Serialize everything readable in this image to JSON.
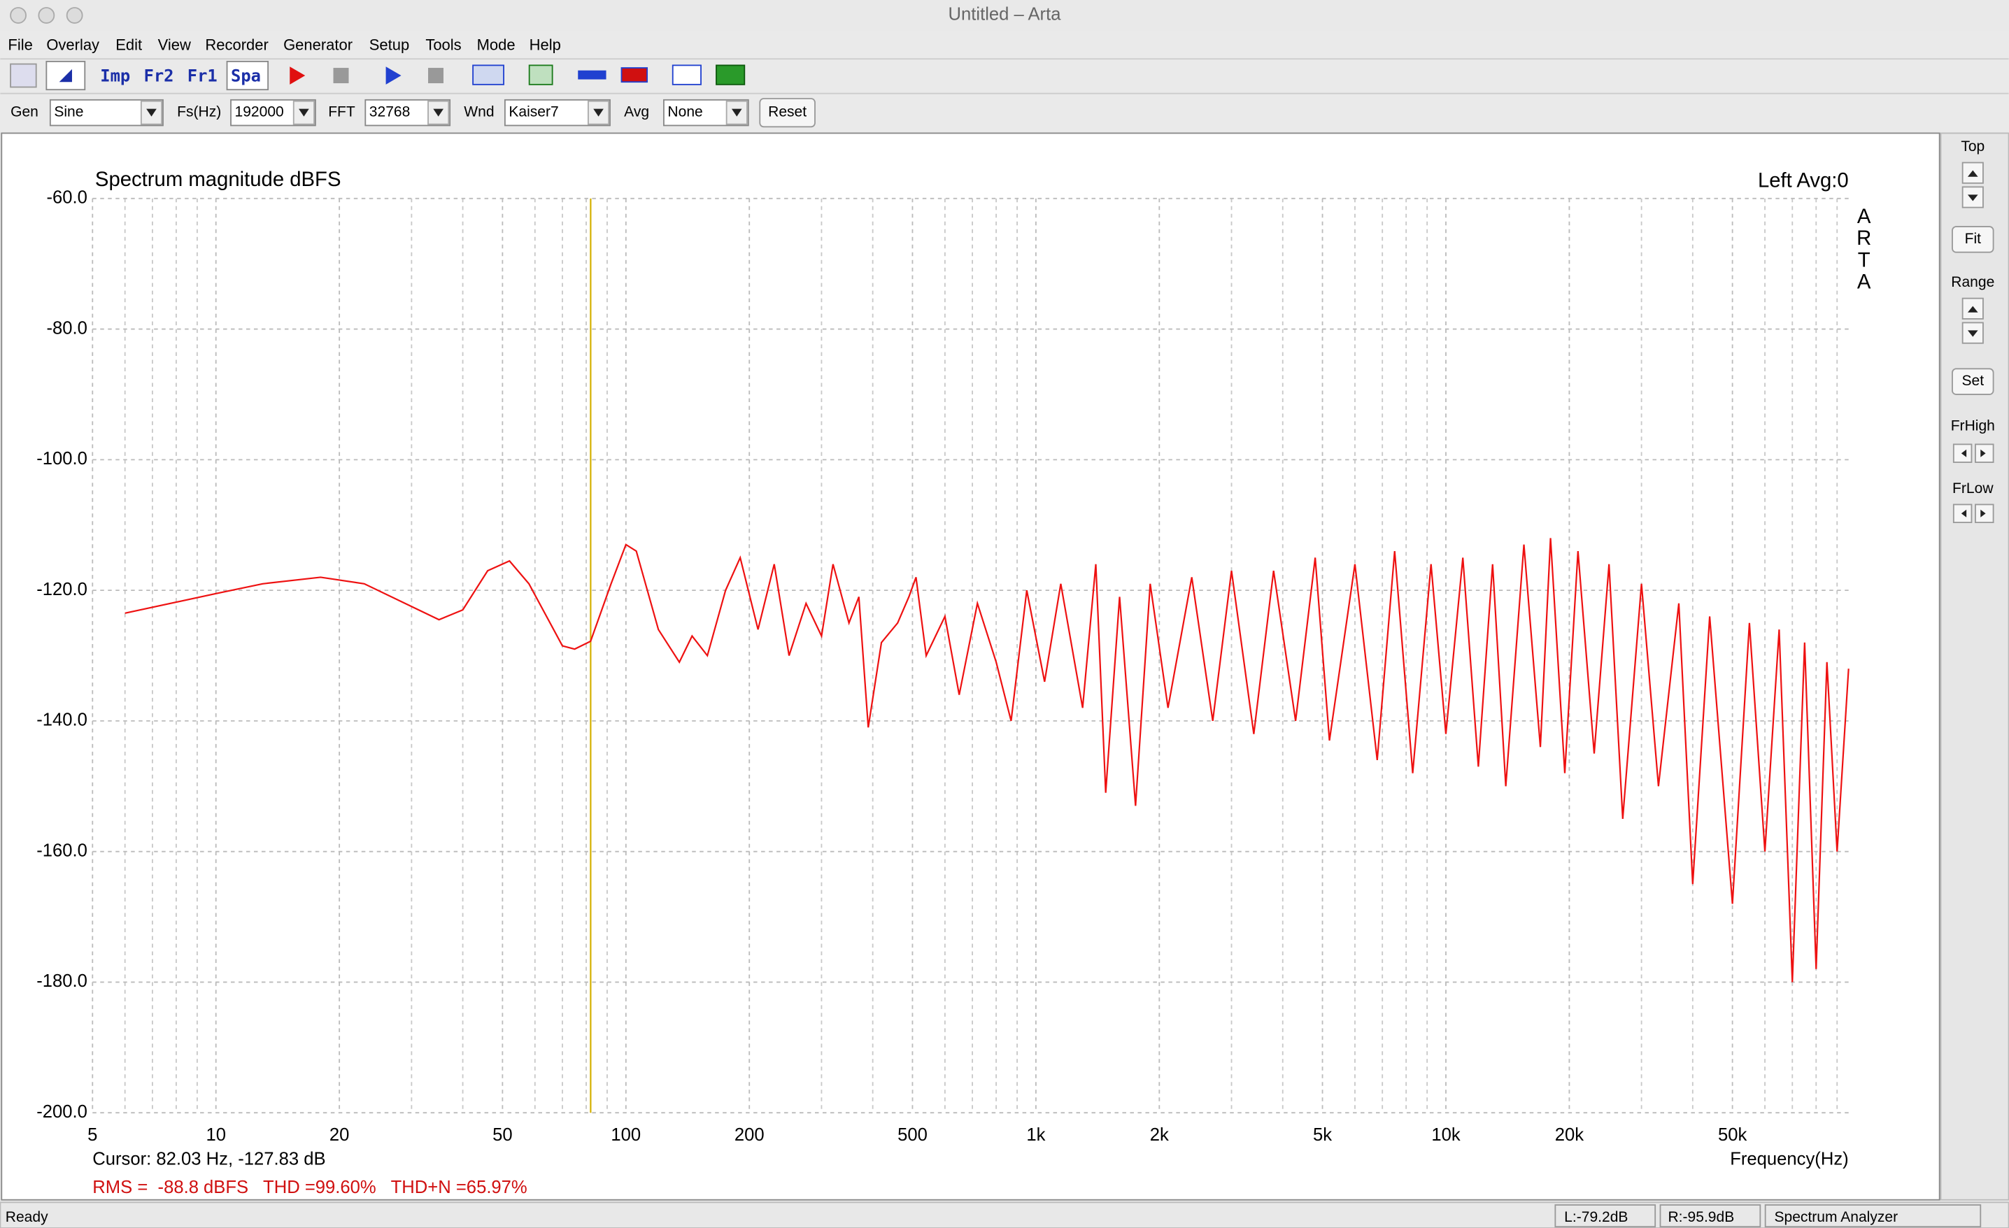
{
  "window": {
    "title": "Untitled – Arta"
  },
  "menu": [
    "File",
    "Overlay",
    "Edit",
    "View",
    "Recorder",
    "Generator",
    "Setup",
    "Tools",
    "Mode",
    "Help"
  ],
  "toolbar": [
    "Imp",
    "Fr2",
    "Fr1",
    "Spa"
  ],
  "controls": [
    {
      "label": "Gen",
      "value": "Sine"
    },
    {
      "label": "Fs(Hz)",
      "value": "192000"
    },
    {
      "label": "FFT",
      "value": "32768"
    },
    {
      "label": "Wnd",
      "value": "Kaiser7"
    },
    {
      "label": "Avg",
      "value": "None"
    }
  ],
  "reset_button": "Reset",
  "side_panel": {
    "top": "Top",
    "fit": "Fit",
    "range": "Range",
    "set": "Set",
    "fr_high": "FrHigh",
    "fr_low": "FrLow"
  },
  "status_bar": [
    "Ready",
    "L:-79.2dB",
    "R:-95.9dB",
    "Spectrum Analyzer"
  ],
  "chart_data": {
    "type": "line",
    "title": "Spectrum magnitude dBFS",
    "channel_info": "Left  Avg:0",
    "watermark": "ARTA",
    "x_label": "Frequency(Hz)",
    "log_x": true,
    "grid": true,
    "color": "#ee1111",
    "cursor": {
      "label": "Cursor: 82.03 Hz, -127.83 dB",
      "x": 82.03,
      "color": "#d4b000"
    },
    "stats": "RMS =  -88.8 dBFS   THD =99.60%   THD+N =65.97%",
    "xlim": [
      5,
      96000
    ],
    "ylim": [
      -200,
      -60
    ],
    "xticks": [
      5,
      10,
      20,
      50,
      100,
      200,
      500,
      {
        "value": 1000,
        "label": "1k"
      },
      {
        "value": 2000,
        "label": "2k"
      },
      {
        "value": 5000,
        "label": "5k"
      },
      {
        "value": 10000,
        "label": "10k"
      },
      {
        "value": 20000,
        "label": "20k"
      },
      {
        "value": 50000,
        "label": "50k"
      }
    ],
    "x_minor_ticks": [
      6,
      7,
      8,
      9,
      30,
      40,
      60,
      70,
      80,
      90,
      300,
      400,
      600,
      700,
      800,
      900,
      3000,
      4000,
      6000,
      7000,
      8000,
      9000,
      30000,
      40000,
      60000,
      70000,
      80000,
      90000
    ],
    "yticks": [
      {
        "value": -60,
        "label": "-60.0"
      },
      {
        "value": -80,
        "label": "-80.0"
      },
      {
        "value": -100,
        "label": "-100.0"
      },
      {
        "value": -120,
        "label": "-120.0"
      },
      {
        "value": -140,
        "label": "-140.0"
      },
      {
        "value": -160,
        "label": "-160.0"
      },
      {
        "value": -180,
        "label": "-180.0"
      },
      {
        "value": -200,
        "label": "-200.0"
      }
    ],
    "x": [
      6,
      10,
      13,
      18,
      23,
      35,
      40,
      46,
      52,
      58,
      70,
      75,
      82,
      92,
      100,
      106,
      120,
      135,
      145,
      158,
      175,
      190,
      210,
      230,
      250,
      275,
      300,
      320,
      350,
      370,
      390,
      420,
      460,
      490,
      510,
      540,
      600,
      650,
      720,
      800,
      870,
      950,
      1050,
      1150,
      1300,
      1400,
      1480,
      1600,
      1750,
      1900,
      2100,
      2400,
      2700,
      3000,
      3400,
      3800,
      4300,
      4800,
      5200,
      6000,
      6800,
      7500,
      8300,
      9200,
      10000,
      11000,
      12000,
      13000,
      14000,
      15500,
      17000,
      18000,
      19500,
      21000,
      23000,
      25000,
      27000,
      30000,
      33000,
      37000,
      40000,
      44000,
      50000,
      55000,
      60000,
      65000,
      70000,
      75000,
      80000,
      85000,
      90000,
      96000
    ],
    "values": [
      -123.5,
      -120.5,
      -119,
      -118,
      -119,
      -124.5,
      -123,
      -117,
      -115.5,
      -119,
      -128.5,
      -129,
      -127.8,
      -119,
      -113,
      -114,
      -126,
      -131,
      -127,
      -130,
      -120,
      -115,
      -126,
      -116,
      -130,
      -122,
      -127,
      -116,
      -125,
      -121,
      -141,
      -128,
      -125,
      -121,
      -118,
      -130,
      -124,
      -136,
      -122,
      -131,
      -140,
      -120,
      -134,
      -119,
      -138,
      -116,
      -151,
      -121,
      -153,
      -119,
      -138,
      -118,
      -140,
      -117,
      -142,
      -117,
      -140,
      -115,
      -143,
      -116,
      -146,
      -114,
      -148,
      -116,
      -142,
      -115,
      -147,
      -116,
      -150,
      -113,
      -144,
      -112,
      -148,
      -114,
      -145,
      -116,
      -155,
      -119,
      -150,
      -122,
      -165,
      -124,
      -168,
      -125,
      -160,
      -126,
      -180,
      -128,
      -178,
      -131,
      -160,
      -132
    ]
  }
}
